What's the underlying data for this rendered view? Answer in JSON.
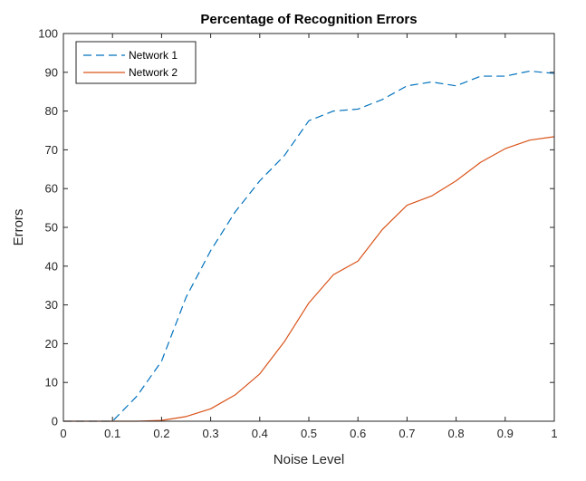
{
  "chart_data": {
    "type": "line",
    "title": "Percentage of Recognition Errors",
    "xlabel": "Noise Level",
    "ylabel": "Errors",
    "xlim": [
      0,
      1
    ],
    "ylim": [
      0,
      100
    ],
    "xticks": [
      0,
      0.1,
      0.2,
      0.3,
      0.4,
      0.5,
      0.6,
      0.7,
      0.8,
      0.9,
      1
    ],
    "xtick_labels": [
      "0",
      "0.1",
      "0.2",
      "0.3",
      "0.4",
      "0.5",
      "0.6",
      "0.7",
      "0.8",
      "0.9",
      "1"
    ],
    "yticks": [
      0,
      10,
      20,
      30,
      40,
      50,
      60,
      70,
      80,
      90,
      100
    ],
    "ytick_labels": [
      "0",
      "10",
      "20",
      "30",
      "40",
      "50",
      "60",
      "70",
      "80",
      "90",
      "100"
    ],
    "grid": false,
    "legend_position": "top-left",
    "x": [
      0,
      0.05,
      0.1,
      0.15,
      0.2,
      0.25,
      0.3,
      0.35,
      0.4,
      0.45,
      0.5,
      0.55,
      0.6,
      0.65,
      0.7,
      0.75,
      0.8,
      0.85,
      0.9,
      0.95,
      1
    ],
    "series": [
      {
        "name": "Network 1",
        "color": "#0072BD",
        "dash": "dashed",
        "values": [
          0,
          0,
          0,
          6.5,
          15.5,
          32,
          44,
          54,
          62,
          68.5,
          77.5,
          80,
          80.5,
          83,
          86.5,
          87.5,
          86.5,
          89,
          89,
          90.3,
          89.7
        ]
      },
      {
        "name": "Network 2",
        "color": "#D95319",
        "dash": "solid",
        "values": [
          0,
          0,
          0,
          0,
          0.2,
          1.2,
          3.2,
          6.8,
          12.2,
          20.5,
          30.5,
          37.8,
          41.3,
          49.5,
          55.7,
          58.1,
          62,
          66.8,
          70.3,
          72.5,
          73.4
        ]
      }
    ]
  }
}
